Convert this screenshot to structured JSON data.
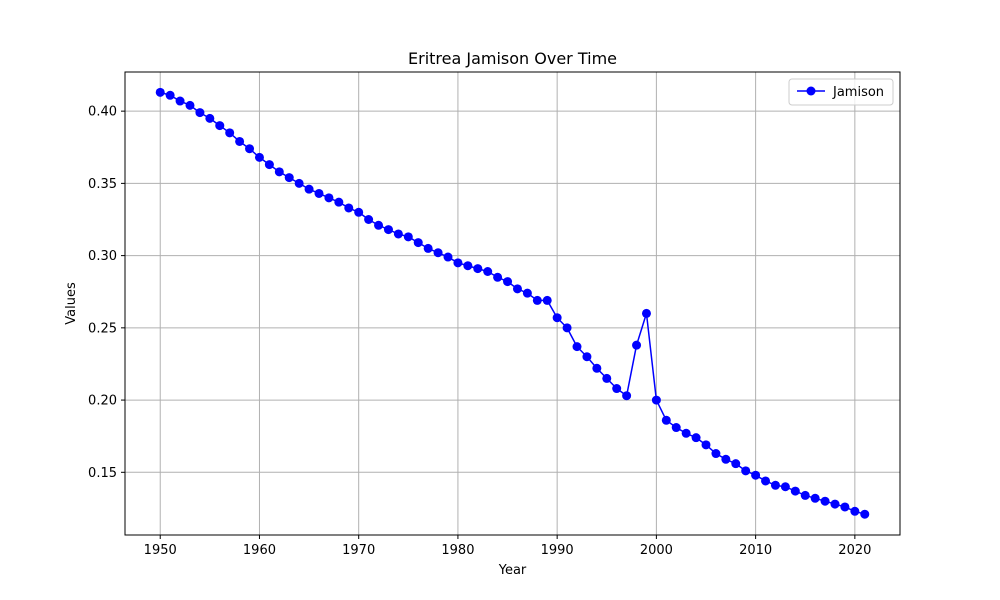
{
  "chart_data": {
    "type": "line",
    "title": "Eritrea Jamison Over Time",
    "xlabel": "Year",
    "ylabel": "Values",
    "xlim": [
      1946.45,
      2024.55
    ],
    "ylim": [
      0.1066,
      0.4271
    ],
    "xticks": [
      1950,
      1960,
      1970,
      1980,
      1990,
      2000,
      2010,
      2020
    ],
    "yticks": [
      0.15,
      0.2,
      0.25,
      0.3,
      0.35,
      0.4
    ],
    "ytick_labels": [
      "0.15",
      "0.20",
      "0.25",
      "0.30",
      "0.35",
      "0.40"
    ],
    "grid": true,
    "legend_position": "top-right",
    "series": [
      {
        "name": "Jamison",
        "color": "#0000ff",
        "marker": "circle",
        "x": [
          1950,
          1951,
          1952,
          1953,
          1954,
          1955,
          1956,
          1957,
          1958,
          1959,
          1960,
          1961,
          1962,
          1963,
          1964,
          1965,
          1966,
          1967,
          1968,
          1969,
          1970,
          1971,
          1972,
          1973,
          1974,
          1975,
          1976,
          1977,
          1978,
          1979,
          1980,
          1981,
          1982,
          1983,
          1984,
          1985,
          1986,
          1987,
          1988,
          1989,
          1990,
          1991,
          1992,
          1993,
          1994,
          1995,
          1996,
          1997,
          1998,
          1999,
          2000,
          2001,
          2002,
          2003,
          2004,
          2005,
          2006,
          2007,
          2008,
          2009,
          2010,
          2011,
          2012,
          2013,
          2014,
          2015,
          2016,
          2017,
          2018,
          2019,
          2020,
          2021
        ],
        "values": [
          0.413,
          0.411,
          0.407,
          0.404,
          0.399,
          0.395,
          0.39,
          0.385,
          0.379,
          0.374,
          0.368,
          0.363,
          0.358,
          0.354,
          0.35,
          0.346,
          0.343,
          0.34,
          0.337,
          0.333,
          0.33,
          0.325,
          0.321,
          0.318,
          0.315,
          0.313,
          0.309,
          0.305,
          0.302,
          0.299,
          0.295,
          0.293,
          0.291,
          0.289,
          0.285,
          0.282,
          0.277,
          0.274,
          0.269,
          0.269,
          0.257,
          0.25,
          0.237,
          0.23,
          0.222,
          0.215,
          0.208,
          0.203,
          0.238,
          0.26,
          0.2,
          0.186,
          0.181,
          0.177,
          0.174,
          0.169,
          0.163,
          0.159,
          0.156,
          0.151,
          0.148,
          0.144,
          0.141,
          0.14,
          0.137,
          0.134,
          0.132,
          0.13,
          0.128,
          0.126,
          0.123,
          0.121
        ]
      }
    ]
  }
}
